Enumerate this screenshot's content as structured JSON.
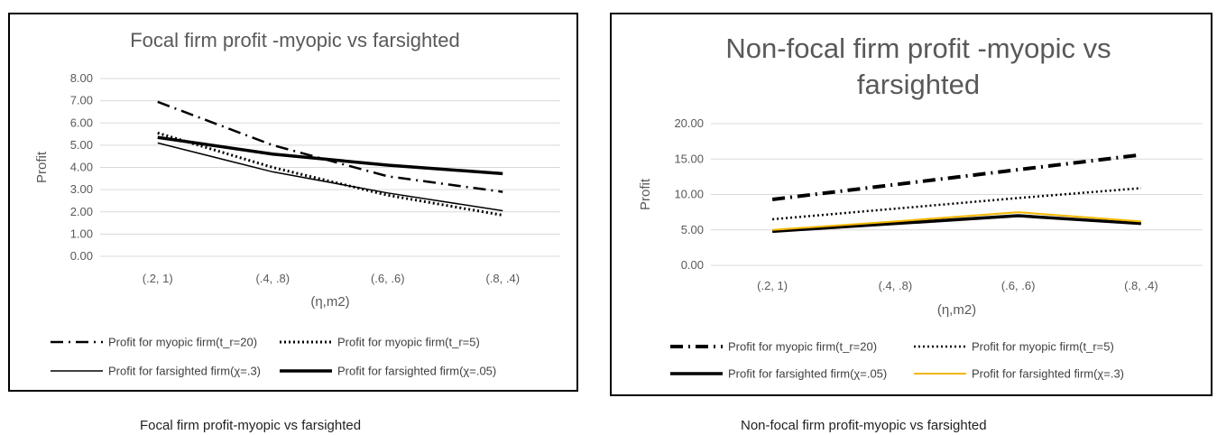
{
  "captions": {
    "left": "Focal firm profit-myopic vs farsighted",
    "right": "Non-focal firm profit-myopic vs farsighted"
  },
  "chart_data": [
    {
      "type": "line",
      "title": "Focal firm profit -myopic vs farsighted",
      "xlabel": "(η,m2)",
      "ylabel": "Profit",
      "categories": [
        "(.2, 1)",
        "(.4, .8)",
        "(.6, .6)",
        "(.8, .4)"
      ],
      "ylim": [
        0,
        8
      ],
      "yticks": [
        "0.00",
        "1.00",
        "2.00",
        "3.00",
        "4.00",
        "5.00",
        "6.00",
        "7.00",
        "8.00"
      ],
      "grid": true,
      "legend_position": "bottom",
      "series": [
        {
          "name": "Profit for myopic firm(t_r=20)",
          "values": [
            6.95,
            5.0,
            3.6,
            2.9
          ],
          "color": "#000000",
          "style": "dashdot",
          "width": 2.5
        },
        {
          "name": "Profit for myopic firm(t_r=5)",
          "values": [
            5.55,
            4.0,
            2.75,
            1.85
          ],
          "color": "#000000",
          "style": "dotted",
          "width": 3
        },
        {
          "name": "Profit for farsighted firm(χ=.3)",
          "values": [
            5.1,
            3.8,
            2.85,
            2.05
          ],
          "color": "#000000",
          "style": "solid",
          "width": 1.5
        },
        {
          "name": "Profit for farsighted firm(χ=.05)",
          "values": [
            5.35,
            4.6,
            4.1,
            3.72
          ],
          "color": "#000000",
          "style": "solid",
          "width": 3.5
        }
      ]
    },
    {
      "type": "line",
      "title": "Non-focal firm profit -myopic vs farsighted",
      "xlabel": "(η,m2)",
      "ylabel": "Profit",
      "categories": [
        "(.2, 1)",
        "(.4, .8)",
        "(.6, .6)",
        "(.8, .4)"
      ],
      "ylim": [
        0,
        20
      ],
      "yticks": [
        "0.00",
        "5.00",
        "10.00",
        "15.00",
        "20.00"
      ],
      "grid": true,
      "legend_position": "bottom",
      "series": [
        {
          "name": "Profit for myopic firm(t_r=20)",
          "values": [
            9.3,
            11.4,
            13.5,
            15.6
          ],
          "color": "#000000",
          "style": "dashdot",
          "width": 4
        },
        {
          "name": "Profit for myopic firm(t_r=5)",
          "values": [
            6.5,
            8.0,
            9.5,
            10.9
          ],
          "color": "#000000",
          "style": "dotted",
          "width": 2.5
        },
        {
          "name": "Profit for farsighted firm(χ=.05)",
          "values": [
            4.8,
            5.9,
            7.0,
            5.9
          ],
          "color": "#000000",
          "style": "solid",
          "width": 3.5
        },
        {
          "name": "Profit for farsighted firm(χ=.3)",
          "values": [
            5.0,
            6.2,
            7.5,
            6.2
          ],
          "color": "#F2B700",
          "style": "solid",
          "width": 2
        }
      ]
    }
  ]
}
